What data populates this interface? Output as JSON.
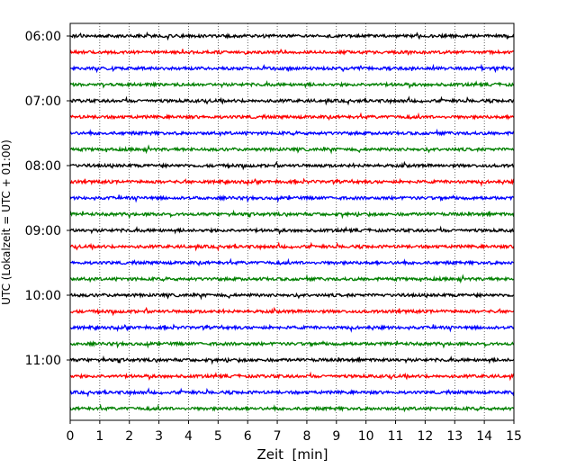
{
  "chart_data": {
    "type": "line",
    "subtype": "helicorder",
    "title": "",
    "xlabel": "Zeit  [min]",
    "ylabel": "UTC (Lokalzeit = UTC + 01:00)",
    "xlim": [
      0,
      15
    ],
    "x_ticks": [
      "0",
      "1",
      "2",
      "3",
      "4",
      "5",
      "6",
      "7",
      "8",
      "9",
      "10",
      "11",
      "12",
      "13",
      "14",
      "15"
    ],
    "y_tick_labels": [
      "06:00",
      "07:00",
      "08:00",
      "09:00",
      "10:00",
      "11:00"
    ],
    "trace_start_times": [
      "06:00",
      "06:15",
      "06:30",
      "06:45",
      "07:00",
      "07:15",
      "07:30",
      "07:45",
      "08:00",
      "08:15",
      "08:30",
      "08:45",
      "09:00",
      "09:15",
      "09:30",
      "09:45",
      "10:00",
      "10:15",
      "10:30",
      "10:45",
      "11:00",
      "11:15",
      "11:30",
      "11:45"
    ],
    "trace_minutes": 15,
    "trace_colors": [
      "#000000",
      "#ff0000",
      "#0000ff",
      "#008000"
    ],
    "vertical_grid": "dotted, every 1 min",
    "legend": "none"
  }
}
